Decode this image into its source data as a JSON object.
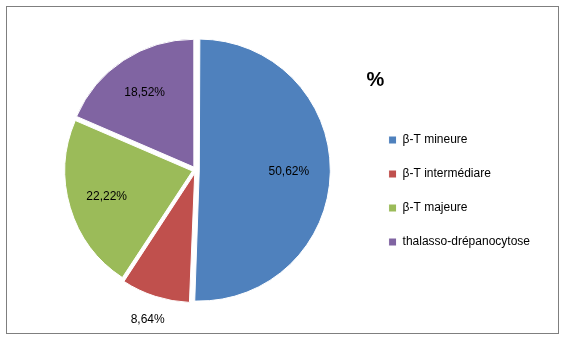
{
  "chart_data": {
    "type": "pie",
    "legend_title": "%",
    "categories": [
      "β-T mineure",
      "β-T intermédiare",
      "β-T majeure",
      "thalasso-drépanocytose"
    ],
    "values": [
      50.62,
      8.64,
      22.22,
      18.52
    ],
    "value_labels": [
      "50,62%",
      "8,64%",
      "22,22%",
      "18,52%"
    ],
    "colors": [
      "#4f81bd",
      "#c0504d",
      "#9bbb59",
      "#8064a2"
    ],
    "data_labels": true,
    "legend": "right"
  }
}
